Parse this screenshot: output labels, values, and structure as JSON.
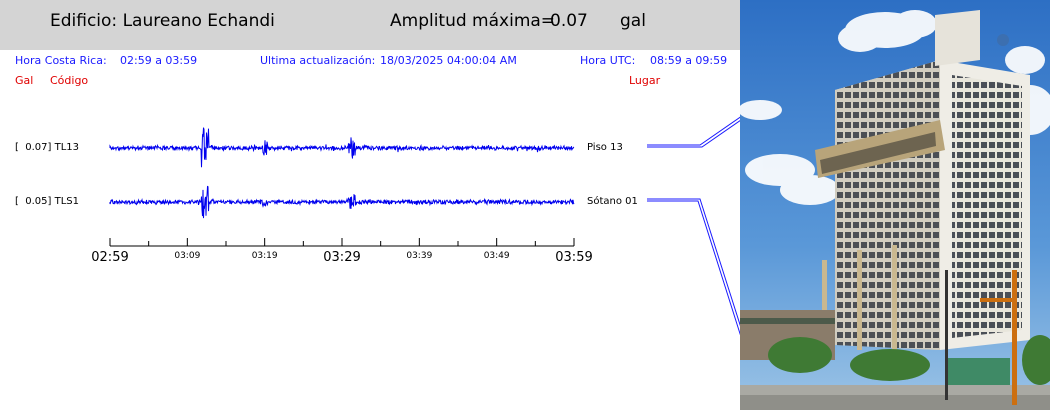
{
  "header": {
    "building": "Edificio: Laureano Echandi",
    "amplitude_label": "Amplitud máxima=",
    "amplitude_value": "0.07",
    "amplitude_unit": "gal"
  },
  "info": {
    "local_time_label": "Hora Costa Rica:",
    "local_time_range": "02:59 a 03:59",
    "update_label": "Ultima actualización:",
    "update_value": "18/03/2025 04:00:04 AM",
    "utc_label": "Hora UTC:",
    "utc_range": "08:59 a 09:59"
  },
  "columns": {
    "gal": "Gal",
    "code": "Código",
    "place": "Lugar"
  },
  "traces": [
    {
      "label": "[  0.07] TL13",
      "place": "Piso 13",
      "gal": 0.07,
      "code": "TL13"
    },
    {
      "label": "[  0.05] TLS1",
      "place": "Sótano 01",
      "gal": 0.05,
      "code": "TLS1"
    }
  ],
  "time_axis": {
    "major": [
      "02:59",
      "03:29",
      "03:59"
    ],
    "minor": [
      "03:09",
      "03:19",
      "03:39",
      "03:49"
    ]
  },
  "colors": {
    "trace": "#0000ee",
    "header_bg": "#d4d4d4",
    "info_text": "#1a1aff",
    "column_text": "#e00000"
  },
  "photo": {
    "icon": "building-photo"
  }
}
